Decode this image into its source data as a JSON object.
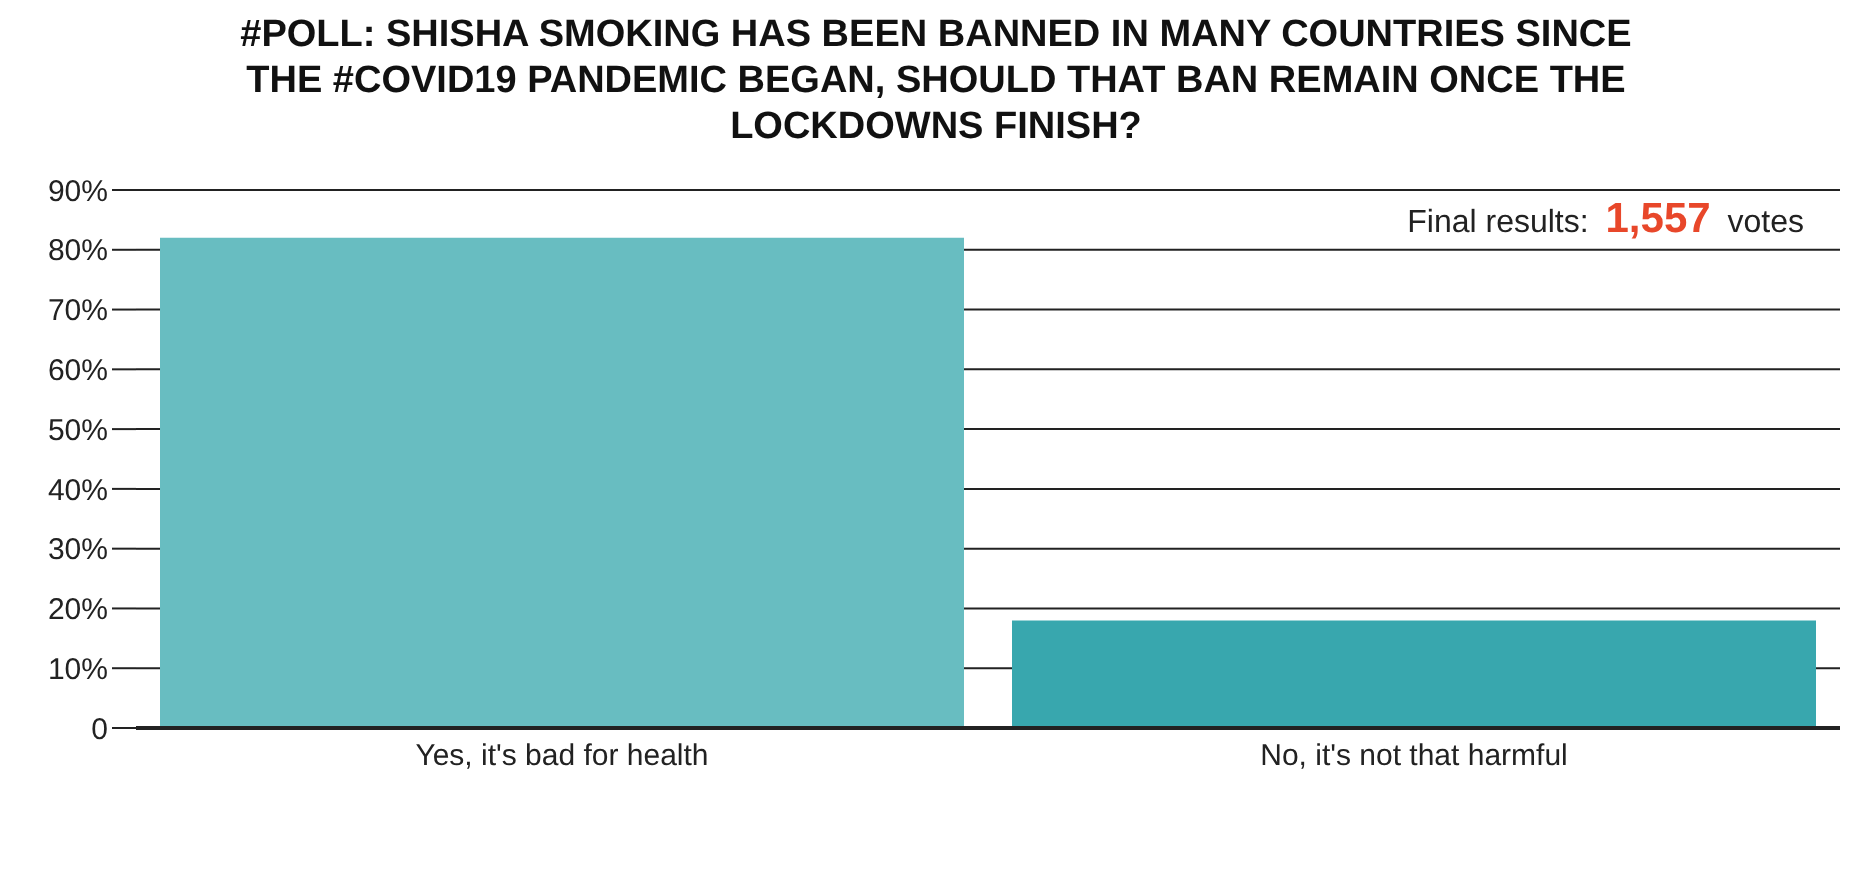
{
  "chart_data": {
    "type": "bar",
    "title": "#POLL: SHISHA SMOKING HAS BEEN BANNED IN MANY COUNTRIES SINCE THE #COVID19 PANDEMIC BEGAN, SHOULD THAT BAN REMAIN ONCE THE LOCKDOWNS FINISH?",
    "annotations": [
      "Final results: 1,557 votes"
    ],
    "categories": [
      "Yes, it's bad for health",
      "No, it's not that harmful"
    ],
    "values": [
      82,
      18
    ],
    "colors": [
      "#68bdc1",
      "#38a7ae"
    ],
    "ylim": [
      0,
      90
    ],
    "yticks": [
      0,
      {
        "value": 10,
        "label": "10%"
      },
      {
        "value": 20,
        "label": "20%"
      },
      {
        "value": 30,
        "label": "30%"
      },
      {
        "value": 40,
        "label": "40%"
      },
      {
        "value": 50,
        "label": "50%"
      },
      {
        "value": 60,
        "label": "60%"
      },
      {
        "value": 70,
        "label": "70%"
      },
      {
        "value": 80,
        "label": "80%"
      },
      {
        "value": 90,
        "label": "90%"
      }
    ],
    "grid": "y",
    "legend": false
  }
}
